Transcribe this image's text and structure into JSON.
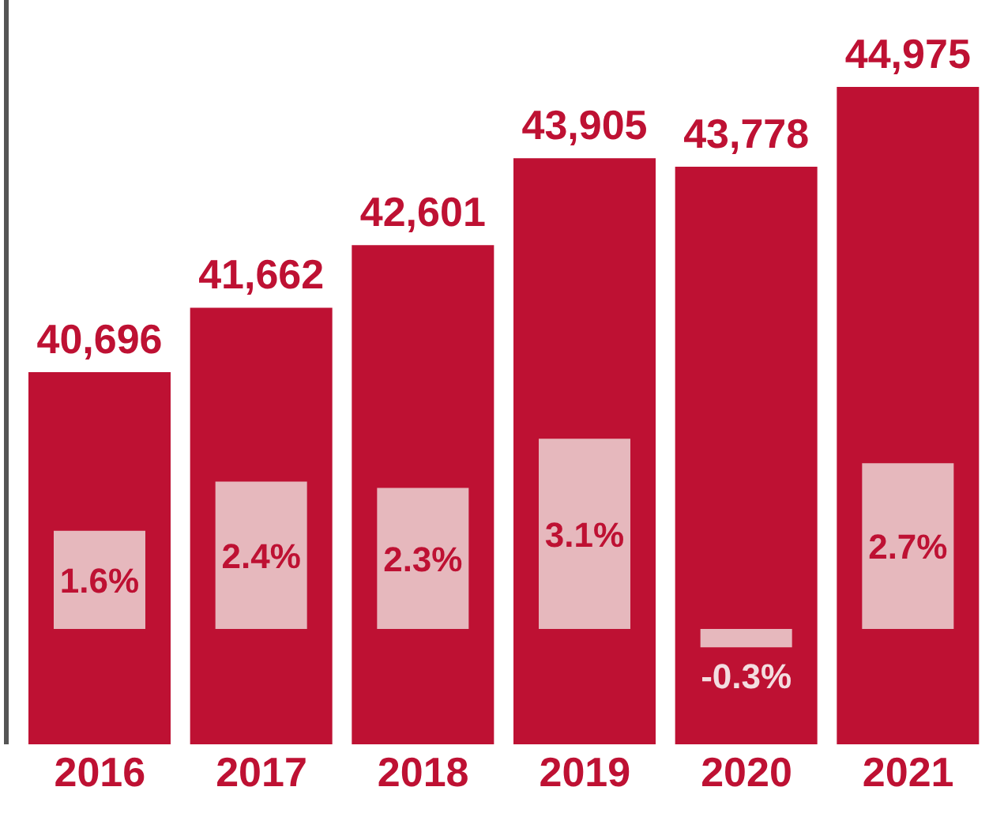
{
  "chart_data": {
    "type": "bar",
    "categories": [
      "2016",
      "2017",
      "2018",
      "2019",
      "2020",
      "2021"
    ],
    "series": [
      {
        "color": "#be1133",
        "values": [
          40696,
          41662,
          42601,
          43905,
          43778,
          44975
        ],
        "value_labels": [
          "40,696",
          "41,662",
          "42,601",
          "43,905",
          "43,778",
          "44,975"
        ]
      },
      {
        "color": "#e6b8bd",
        "axis": "y2",
        "values": [
          1.6,
          2.4,
          2.3,
          3.1,
          -0.3,
          2.7
        ],
        "value_labels": [
          "1.6%",
          "2.4%",
          "2.3%",
          "3.1%",
          "-0.3%",
          "2.7%"
        ]
      }
    ],
    "ylim": [
      35110,
      46280
    ],
    "y2lim": [
      -1.88,
      10.25
    ],
    "tick_labels": "x"
  }
}
